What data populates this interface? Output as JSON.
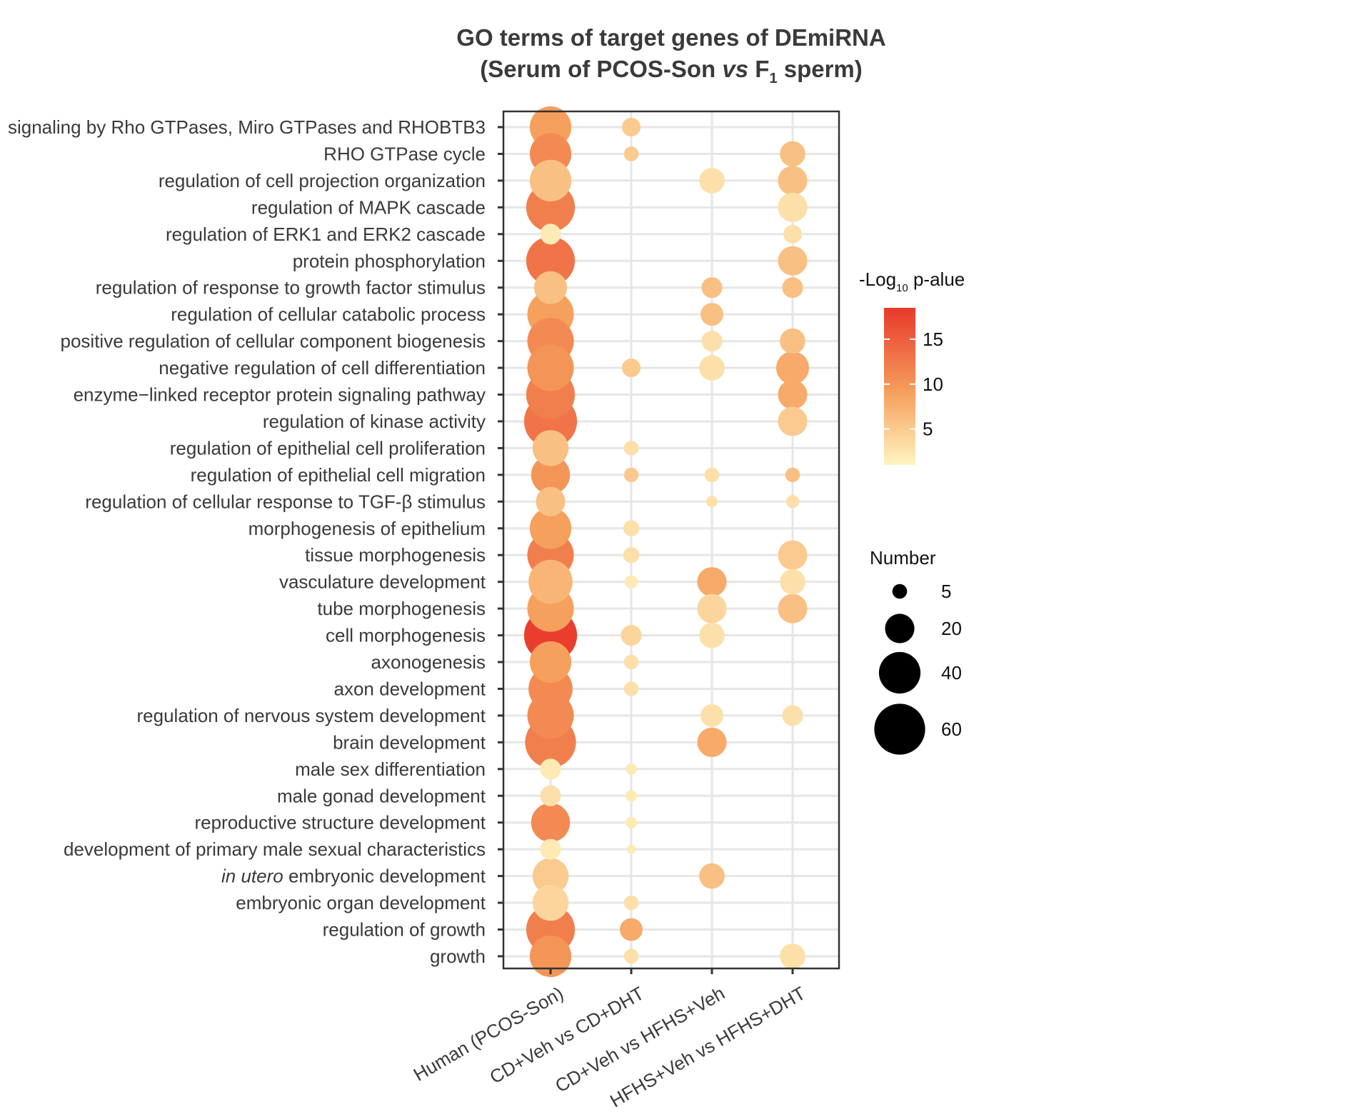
{
  "chart_data": {
    "type": "scatter",
    "title_line1": "GO terms of target genes of DEmiRNA",
    "title_line2_parts": {
      "open": "(Serum of PCOS-Son ",
      "vs": "vs",
      "mid": " F",
      "sub": "1",
      "close": " sperm)"
    },
    "columns": [
      "Human (PCOS-Son)",
      "CD+Veh vs CD+DHT",
      "CD+Veh vs HFHS+Veh",
      "HFHS+Veh vs HFHS+DHT"
    ],
    "terms": [
      {
        "label": "signaling by Rho GTPases, Miro GTPases and RHOBTB3"
      },
      {
        "label": "RHO GTPase cycle"
      },
      {
        "label": "regulation of cell projection organization"
      },
      {
        "label": "regulation of MAPK cascade"
      },
      {
        "label": "regulation of ERK1 and ERK2 cascade"
      },
      {
        "label": "protein phosphorylation"
      },
      {
        "label": "regulation of response to growth factor stimulus"
      },
      {
        "label": "regulation of cellular catabolic process"
      },
      {
        "label": "positive regulation of cellular component biogenesis"
      },
      {
        "label": "negative regulation of cell differentiation"
      },
      {
        "label": "enzyme−linked receptor protein signaling pathway"
      },
      {
        "label": "regulation of kinase activity"
      },
      {
        "label": "regulation of epithelial cell proliferation"
      },
      {
        "label": "regulation of epithelial cell migration"
      },
      {
        "label": "regulation of cellular response to TGF-β stimulus"
      },
      {
        "label": "morphogenesis of epithelium"
      },
      {
        "label": "tissue morphogenesis"
      },
      {
        "label": "vasculature development"
      },
      {
        "label": "tube morphogenesis"
      },
      {
        "label": "cell morphogenesis"
      },
      {
        "label": "axonogenesis"
      },
      {
        "label": "axon development"
      },
      {
        "label": "regulation of nervous system development"
      },
      {
        "label": "brain development"
      },
      {
        "label": "male sex differentiation"
      },
      {
        "label": "male gonad development"
      },
      {
        "label": "reproductive structure development"
      },
      {
        "label": "development of primary male sexual characteristics"
      },
      {
        "label": "embryonic development",
        "italic_prefix": "in utero"
      },
      {
        "label": "embryonic organ development"
      },
      {
        "label": "regulation of growth"
      },
      {
        "label": "growth"
      }
    ],
    "points": [
      {
        "term": 0,
        "col": 0,
        "number": 40,
        "neglog10p": 9
      },
      {
        "term": 0,
        "col": 1,
        "number": 8,
        "neglog10p": 5
      },
      {
        "term": 1,
        "col": 0,
        "number": 40,
        "neglog10p": 11
      },
      {
        "term": 1,
        "col": 1,
        "number": 5,
        "neglog10p": 5
      },
      {
        "term": 1,
        "col": 3,
        "number": 15,
        "neglog10p": 6
      },
      {
        "term": 2,
        "col": 0,
        "number": 40,
        "neglog10p": 6
      },
      {
        "term": 2,
        "col": 2,
        "number": 15,
        "neglog10p": 3
      },
      {
        "term": 2,
        "col": 3,
        "number": 20,
        "neglog10p": 6
      },
      {
        "term": 3,
        "col": 0,
        "number": 55,
        "neglog10p": 12
      },
      {
        "term": 3,
        "col": 3,
        "number": 20,
        "neglog10p": 3
      },
      {
        "term": 4,
        "col": 0,
        "number": 10,
        "neglog10p": 2
      },
      {
        "term": 4,
        "col": 3,
        "number": 8,
        "neglog10p": 3
      },
      {
        "term": 5,
        "col": 0,
        "number": 55,
        "neglog10p": 13
      },
      {
        "term": 5,
        "col": 3,
        "number": 20,
        "neglog10p": 6
      },
      {
        "term": 6,
        "col": 0,
        "number": 25,
        "neglog10p": 6
      },
      {
        "term": 6,
        "col": 2,
        "number": 10,
        "neglog10p": 6
      },
      {
        "term": 6,
        "col": 3,
        "number": 10,
        "neglog10p": 6
      },
      {
        "term": 7,
        "col": 0,
        "number": 50,
        "neglog10p": 9
      },
      {
        "term": 7,
        "col": 2,
        "number": 12,
        "neglog10p": 6
      },
      {
        "term": 8,
        "col": 0,
        "number": 50,
        "neglog10p": 11
      },
      {
        "term": 8,
        "col": 2,
        "number": 10,
        "neglog10p": 3
      },
      {
        "term": 8,
        "col": 3,
        "number": 15,
        "neglog10p": 6
      },
      {
        "term": 9,
        "col": 0,
        "number": 50,
        "neglog10p": 10
      },
      {
        "term": 9,
        "col": 1,
        "number": 8,
        "neglog10p": 5
      },
      {
        "term": 9,
        "col": 2,
        "number": 15,
        "neglog10p": 3
      },
      {
        "term": 9,
        "col": 3,
        "number": 25,
        "neglog10p": 8
      },
      {
        "term": 10,
        "col": 0,
        "number": 55,
        "neglog10p": 12
      },
      {
        "term": 10,
        "col": 3,
        "number": 20,
        "neglog10p": 8
      },
      {
        "term": 11,
        "col": 0,
        "number": 65,
        "neglog10p": 13
      },
      {
        "term": 11,
        "col": 3,
        "number": 20,
        "neglog10p": 5
      },
      {
        "term": 12,
        "col": 0,
        "number": 30,
        "neglog10p": 6
      },
      {
        "term": 12,
        "col": 1,
        "number": 5,
        "neglog10p": 3
      },
      {
        "term": 13,
        "col": 0,
        "number": 35,
        "neglog10p": 10
      },
      {
        "term": 13,
        "col": 1,
        "number": 5,
        "neglog10p": 5
      },
      {
        "term": 13,
        "col": 2,
        "number": 5,
        "neglog10p": 3
      },
      {
        "term": 13,
        "col": 3,
        "number": 5,
        "neglog10p": 6
      },
      {
        "term": 14,
        "col": 0,
        "number": 20,
        "neglog10p": 6
      },
      {
        "term": 14,
        "col": 2,
        "number": 3,
        "neglog10p": 3
      },
      {
        "term": 14,
        "col": 3,
        "number": 4,
        "neglog10p": 3
      },
      {
        "term": 15,
        "col": 0,
        "number": 40,
        "neglog10p": 9
      },
      {
        "term": 15,
        "col": 1,
        "number": 6,
        "neglog10p": 3
      },
      {
        "term": 16,
        "col": 0,
        "number": 50,
        "neglog10p": 12
      },
      {
        "term": 16,
        "col": 1,
        "number": 6,
        "neglog10p": 3
      },
      {
        "term": 16,
        "col": 3,
        "number": 20,
        "neglog10p": 5
      },
      {
        "term": 17,
        "col": 0,
        "number": 45,
        "neglog10p": 7
      },
      {
        "term": 17,
        "col": 1,
        "number": 4,
        "neglog10p": 2
      },
      {
        "term": 17,
        "col": 2,
        "number": 20,
        "neglog10p": 8
      },
      {
        "term": 17,
        "col": 3,
        "number": 15,
        "neglog10p": 3
      },
      {
        "term": 18,
        "col": 0,
        "number": 50,
        "neglog10p": 9
      },
      {
        "term": 18,
        "col": 2,
        "number": 20,
        "neglog10p": 4
      },
      {
        "term": 18,
        "col": 3,
        "number": 20,
        "neglog10p": 6
      },
      {
        "term": 19,
        "col": 0,
        "number": 65,
        "neglog10p": 18
      },
      {
        "term": 19,
        "col": 1,
        "number": 10,
        "neglog10p": 4
      },
      {
        "term": 19,
        "col": 2,
        "number": 15,
        "neglog10p": 3
      },
      {
        "term": 20,
        "col": 0,
        "number": 40,
        "neglog10p": 9
      },
      {
        "term": 20,
        "col": 1,
        "number": 5,
        "neglog10p": 3
      },
      {
        "term": 21,
        "col": 0,
        "number": 45,
        "neglog10p": 11
      },
      {
        "term": 21,
        "col": 1,
        "number": 5,
        "neglog10p": 3
      },
      {
        "term": 22,
        "col": 0,
        "number": 50,
        "neglog10p": 11
      },
      {
        "term": 22,
        "col": 2,
        "number": 12,
        "neglog10p": 3
      },
      {
        "term": 22,
        "col": 3,
        "number": 10,
        "neglog10p": 3
      },
      {
        "term": 23,
        "col": 0,
        "number": 60,
        "neglog10p": 12
      },
      {
        "term": 23,
        "col": 2,
        "number": 20,
        "neglog10p": 8
      },
      {
        "term": 24,
        "col": 0,
        "number": 10,
        "neglog10p": 2
      },
      {
        "term": 24,
        "col": 1,
        "number": 3,
        "neglog10p": 2
      },
      {
        "term": 25,
        "col": 0,
        "number": 10,
        "neglog10p": 3
      },
      {
        "term": 25,
        "col": 1,
        "number": 3,
        "neglog10p": 2
      },
      {
        "term": 26,
        "col": 0,
        "number": 35,
        "neglog10p": 11
      },
      {
        "term": 26,
        "col": 1,
        "number": 3,
        "neglog10p": 2
      },
      {
        "term": 27,
        "col": 0,
        "number": 10,
        "neglog10p": 2
      },
      {
        "term": 27,
        "col": 1,
        "number": 2,
        "neglog10p": 2
      },
      {
        "term": 28,
        "col": 0,
        "number": 30,
        "neglog10p": 5
      },
      {
        "term": 28,
        "col": 2,
        "number": 15,
        "neglog10p": 6
      },
      {
        "term": 29,
        "col": 0,
        "number": 30,
        "neglog10p": 4
      },
      {
        "term": 29,
        "col": 1,
        "number": 5,
        "neglog10p": 3
      },
      {
        "term": 30,
        "col": 0,
        "number": 55,
        "neglog10p": 12
      },
      {
        "term": 30,
        "col": 1,
        "number": 12,
        "neglog10p": 8
      },
      {
        "term": 31,
        "col": 0,
        "number": 40,
        "neglog10p": 10
      },
      {
        "term": 31,
        "col": 1,
        "number": 5,
        "neglog10p": 3
      },
      {
        "term": 31,
        "col": 3,
        "number": 15,
        "neglog10p": 3
      }
    ],
    "color_legend": {
      "title_prefix": "-Log",
      "title_sub": "10",
      "title_suffix": " p-alue",
      "min": 1,
      "max": 18.5,
      "ticks": [
        {
          "value": 15,
          "label": "15"
        },
        {
          "value": 10,
          "label": "10"
        },
        {
          "value": 5,
          "label": "5"
        }
      ],
      "colors": {
        "low": "#fff5c2",
        "mid": "#f6a15e",
        "high": "#e8392b"
      }
    },
    "size_legend": {
      "title": "Number",
      "entries": [
        {
          "value": 5,
          "label": "5"
        },
        {
          "value": 20,
          "label": "20"
        },
        {
          "value": 40,
          "label": "40"
        },
        {
          "value": 60,
          "label": "60"
        }
      ],
      "color": "#000000"
    }
  }
}
